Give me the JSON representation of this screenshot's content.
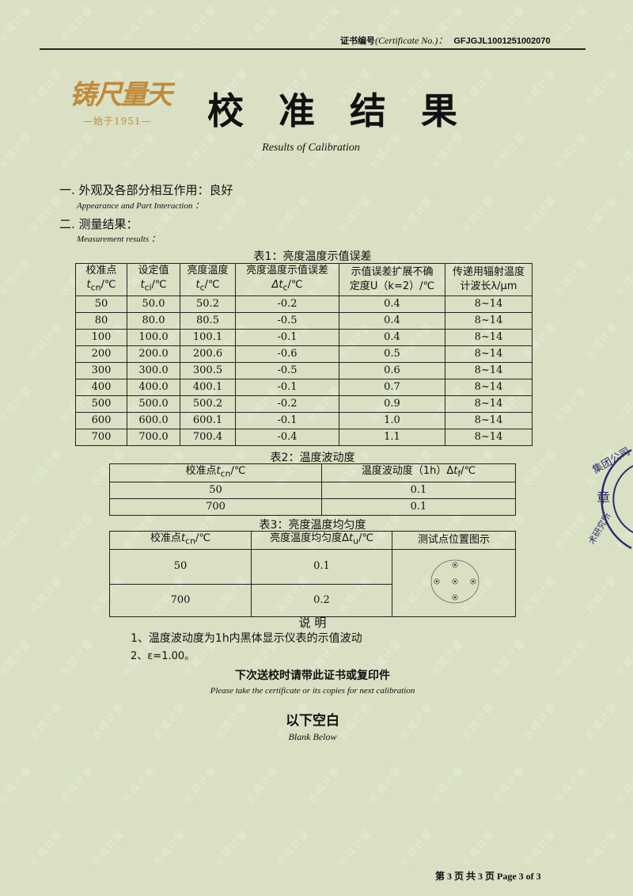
{
  "header": {
    "cert_label": "证书编号",
    "cert_label_en": "(Certificate No.)：",
    "cert_no": "GFJGJL1001251002070"
  },
  "logo": {
    "text": "铸尺量天",
    "since": "—始于1951—"
  },
  "title": "校 准 结 果",
  "subtitle": "Results of Calibration",
  "section1": {
    "label": "一. 外观及各部分相互作用：良好",
    "en": "Appearance and Part Interaction ："
  },
  "section2": {
    "label": "二. 测量结果：",
    "en": "Measurement results ："
  },
  "table1": {
    "caption": "表1：亮度温度示值误差",
    "headers": [
      [
        "校准点",
        "t",
        "cn",
        "/℃"
      ],
      [
        "设定值",
        "t",
        "ci",
        "/℃"
      ],
      [
        "亮度温度",
        "t",
        "c",
        "/℃"
      ],
      [
        "亮度温度示值误差",
        "Δt",
        "c",
        "/℃"
      ],
      [
        "示值误差扩展不确",
        "定度U（k=2）/℃",
        "",
        ""
      ],
      [
        "传递用辐射温度",
        "计波长λ/μm",
        "",
        ""
      ]
    ],
    "rows": [
      [
        "50",
        "50.0",
        "50.2",
        "-0.2",
        "0.4",
        "8~14"
      ],
      [
        "80",
        "80.0",
        "80.5",
        "-0.5",
        "0.4",
        "8~14"
      ],
      [
        "100",
        "100.0",
        "100.1",
        "-0.1",
        "0.4",
        "8~14"
      ],
      [
        "200",
        "200.0",
        "200.6",
        "-0.6",
        "0.5",
        "8~14"
      ],
      [
        "300",
        "300.0",
        "300.5",
        "-0.5",
        "0.6",
        "8~14"
      ],
      [
        "400",
        "400.0",
        "400.1",
        "-0.1",
        "0.7",
        "8~14"
      ],
      [
        "500",
        "500.0",
        "500.2",
        "-0.2",
        "0.9",
        "8~14"
      ],
      [
        "600",
        "600.0",
        "600.1",
        "-0.1",
        "1.0",
        "8~14"
      ],
      [
        "700",
        "700.0",
        "700.4",
        "-0.4",
        "1.1",
        "8~14"
      ]
    ]
  },
  "table2": {
    "caption": "表2：温度波动度",
    "headers": [
      [
        "校准点",
        "t",
        "cn",
        "/℃"
      ],
      [
        "温度波动度（1h）Δ",
        "t",
        "f",
        "/℃"
      ]
    ],
    "rows": [
      [
        "50",
        "0.1"
      ],
      [
        "700",
        "0.1"
      ]
    ]
  },
  "table3": {
    "caption": "表3：亮度温度均匀度",
    "headers": [
      [
        "校准点",
        "t",
        "cn",
        "/℃"
      ],
      [
        "亮度温度均匀度Δ",
        "t",
        "u",
        "/℃"
      ],
      [
        "测试点位置图示",
        "",
        "",
        ""
      ]
    ],
    "rows": [
      [
        "50",
        "0.1"
      ],
      [
        "700",
        "0.2"
      ]
    ]
  },
  "notes": {
    "title": "说 明",
    "items": [
      "1、温度波动度为1h内黑体显示仪表的示值波动",
      "2、ε=1.00。"
    ]
  },
  "reminder": {
    "zh": "下次送校时请带此证书或复印件",
    "en": "Please take the certificate or its copies for next calibration"
  },
  "blank": {
    "zh": "以下空白",
    "en": "Blank Below"
  },
  "stamp": {
    "outer": "集团公司",
    "center": "章",
    "inner": "术研究所",
    "color": "#2b2d6e"
  },
  "watermark": "长城计量",
  "footer": "第 3 页 共 3 页   Page 3 of 3",
  "colors": {
    "background": "#d9e0c3",
    "logo": "#c08a3a"
  }
}
